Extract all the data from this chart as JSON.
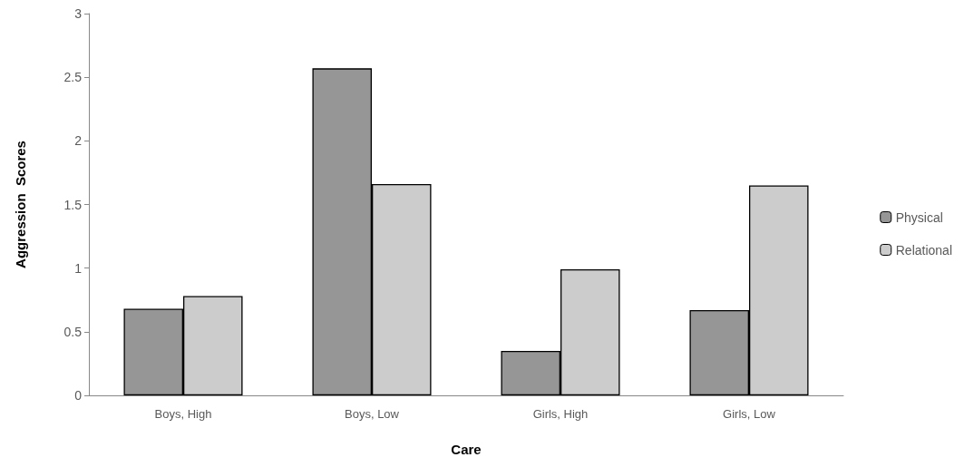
{
  "chart_data": {
    "type": "bar",
    "xlabel": "Care",
    "ylabel": "Aggression  Scores",
    "categories": [
      "Boys, High",
      "Boys, Low",
      "Girls, High",
      "Girls, Low"
    ],
    "series": [
      {
        "name": "Physical",
        "color": "#969696",
        "values": [
          0.68,
          2.57,
          0.35,
          0.67
        ]
      },
      {
        "name": "Relational",
        "color": "#cccccc",
        "values": [
          0.78,
          1.66,
          0.99,
          1.65
        ]
      }
    ],
    "ylim": [
      0,
      3
    ],
    "yticks": [
      0,
      0.5,
      1,
      1.5,
      2,
      2.5,
      3
    ],
    "grid": false,
    "legend": "right"
  }
}
